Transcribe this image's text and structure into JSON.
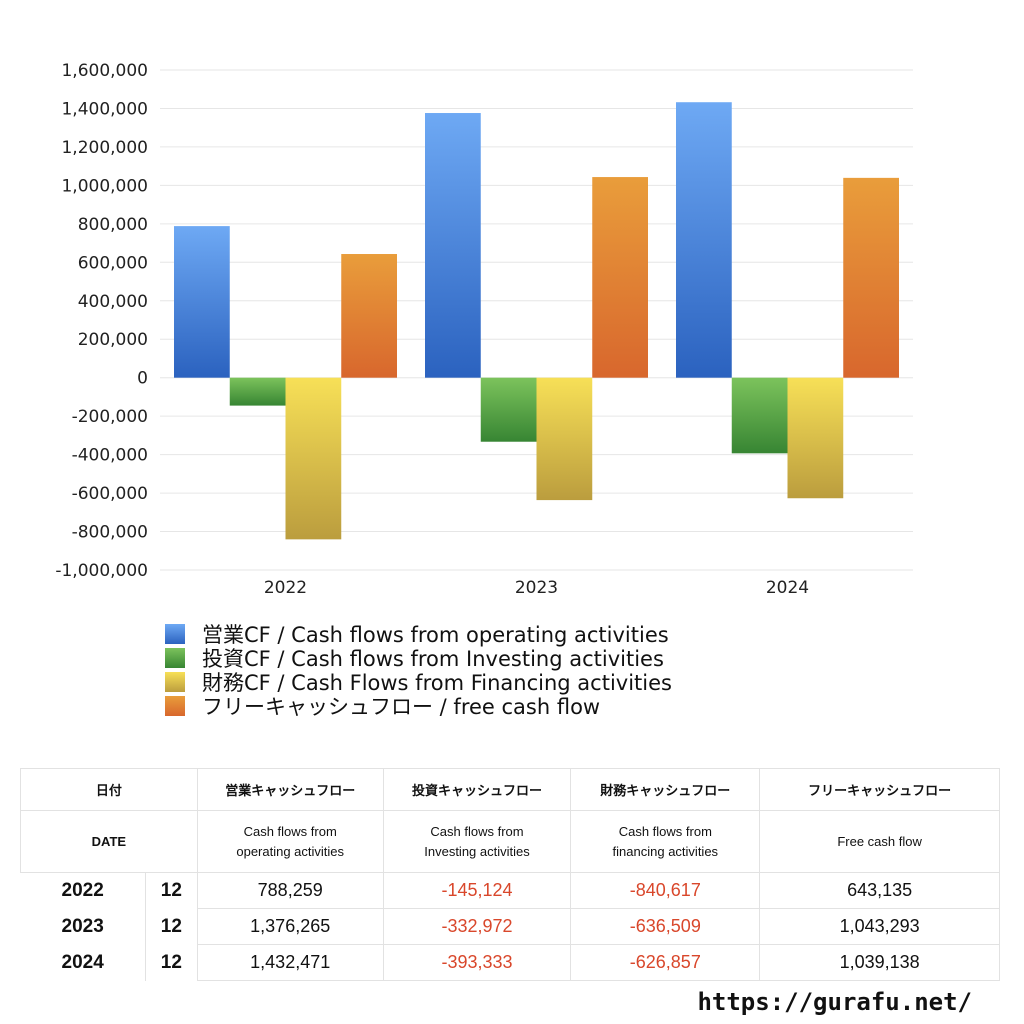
{
  "chart_data": {
    "type": "bar",
    "categories": [
      "2022",
      "2023",
      "2024"
    ],
    "series": [
      {
        "name": "営業CF / Cash flows from operating activities",
        "values": [
          788259,
          1376265,
          1432471
        ],
        "colors": [
          "#6ea9f4",
          "#2b62bf"
        ]
      },
      {
        "name": "投資CF / Cash flows from Investing activities",
        "values": [
          -145124,
          -332972,
          -393333
        ],
        "colors": [
          "#7cc35c",
          "#378533"
        ]
      },
      {
        "name": "財務CF / Cash Flows from Financing activities",
        "values": [
          -840617,
          -636509,
          -626857
        ],
        "colors": [
          "#f7e057",
          "#bb9d3e"
        ]
      },
      {
        "name": "フリーキャッシュフロー / free cash flow",
        "values": [
          643135,
          1043293,
          1039138
        ],
        "colors": [
          "#e99d3b",
          "#d8672d"
        ]
      }
    ],
    "ylim": [
      -1000000,
      1600000
    ],
    "yticks": [
      1600000,
      1400000,
      1200000,
      1000000,
      800000,
      600000,
      400000,
      200000,
      0,
      -200000,
      -400000,
      -600000,
      -800000,
      -1000000
    ],
    "ytick_labels": [
      "1,600,000",
      "1,400,000",
      "1,200,000",
      "1,000,000",
      "800,000",
      "600,000",
      "400,000",
      "200,000",
      "0",
      "-200,000",
      "-400,000",
      "-600,000",
      "-800,000",
      "-1,000,000"
    ],
    "grid": true,
    "legend": "bottom-left"
  },
  "table": {
    "headers_ja": [
      "日付",
      "営業キャッシュフロー",
      "投資キャッシュフロー",
      "財務キャッシュフロー",
      "フリーキャッシュフロー"
    ],
    "headers_en": [
      "DATE",
      "Cash flows from\noperating activities",
      "Cash flows from\nInvesting activities",
      "Cash flows from\nfinancing activities",
      "Free cash flow"
    ],
    "rows": [
      {
        "year": "2022",
        "month": "12",
        "op": "788,259",
        "inv": "-145,124",
        "fin": "-840,617",
        "free": "643,135"
      },
      {
        "year": "2023",
        "month": "12",
        "op": "1,376,265",
        "inv": "-332,972",
        "fin": "-636,509",
        "free": "1,043,293"
      },
      {
        "year": "2024",
        "month": "12",
        "op": "1,432,471",
        "inv": "-393,333",
        "fin": "-626,857",
        "free": "1,039,138"
      }
    ]
  },
  "footer": {
    "url": "https://gurafu.net/"
  }
}
